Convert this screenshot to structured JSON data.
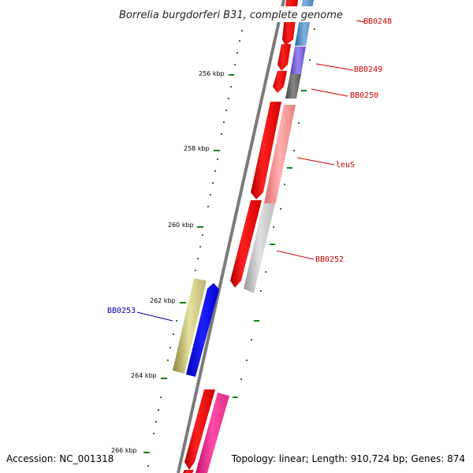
{
  "title": "Borrelia burgdorferi B31, complete genome",
  "footer": {
    "accession": "Accession: NC_001318",
    "summary": "Topology: linear; Length: 910,724 bp; Genes: 874"
  },
  "scale_labels": [
    "256 kbp",
    "258 kbp",
    "260 kbp",
    "262 kbp",
    "264 kbp",
    "266 kbp"
  ],
  "gene_labels": {
    "bb0248": "BB0248",
    "bb0249": "BB0249",
    "bb0250": "BB0250",
    "leus": "leuS",
    "bb0252": "BB0252",
    "bb0253": "BB0253"
  },
  "colors": {
    "forward_gene": "#ff0000",
    "reverse_gene_blue": "#0000ff",
    "tick": "#1a7f1a",
    "label_red": "#cc0000",
    "label_blue": "#0000aa"
  }
}
